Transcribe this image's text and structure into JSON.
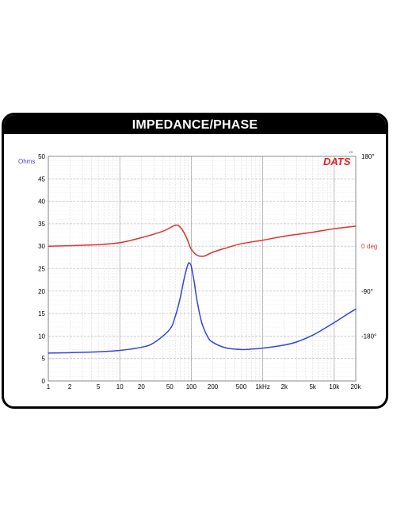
{
  "header": {
    "title": "IMPEDANCE/PHASE"
  },
  "logo": {
    "text": "DATS",
    "version": "V3"
  },
  "chart_data": {
    "type": "line",
    "title": "IMPEDANCE/PHASE",
    "x_scale": "log",
    "xlim": [
      1,
      20000
    ],
    "x_tick_values": [
      1,
      2,
      5,
      10,
      20,
      50,
      100,
      200,
      500,
      1000,
      2000,
      5000,
      10000,
      20000
    ],
    "x_tick_labels": [
      "1",
      "2",
      "5",
      "10",
      "20",
      "50",
      "100",
      "200",
      "500",
      "1kHz",
      "2k",
      "5k",
      "10k",
      "20k"
    ],
    "left_axis": {
      "unit_label": "Ohms",
      "ylim": [
        0,
        50
      ],
      "ticks": [
        "0",
        "5",
        "10",
        "15",
        "20",
        "25",
        "30",
        "35",
        "40",
        "45",
        "50"
      ]
    },
    "right_axis": {
      "unit_label": "deg",
      "ylim": [
        -270,
        180
      ],
      "ticks": [
        {
          "value": 180,
          "label": "180°"
        },
        {
          "value": 0,
          "label": "0"
        },
        {
          "value": -90,
          "label": "-90°"
        },
        {
          "value": -180,
          "label": "-180°"
        }
      ]
    },
    "series": [
      {
        "axis": "left",
        "color": "#3344dd",
        "x": [
          1,
          2,
          5,
          10,
          20,
          30,
          50,
          60,
          70,
          80,
          90,
          95,
          100,
          110,
          120,
          140,
          170,
          200,
          300,
          500,
          700,
          1000,
          2000,
          3000,
          5000,
          7000,
          10000,
          15000,
          20000
        ],
        "y": [
          6.2,
          6.3,
          6.5,
          6.8,
          7.5,
          8.5,
          11.5,
          14.5,
          18.5,
          23.0,
          26.0,
          26.2,
          25.5,
          22.0,
          18.0,
          13.0,
          9.8,
          8.6,
          7.4,
          7.0,
          7.1,
          7.3,
          8.0,
          8.7,
          10.2,
          11.5,
          13.0,
          14.8,
          16.0
        ]
      },
      {
        "axis": "right",
        "color": "#e03030",
        "x": [
          1,
          2,
          5,
          10,
          20,
          40,
          60,
          70,
          80,
          90,
          100,
          120,
          150,
          200,
          300,
          500,
          1000,
          2000,
          5000,
          10000,
          20000
        ],
        "y": [
          0,
          1,
          3,
          7,
          17,
          30,
          42,
          38,
          26,
          10,
          -6,
          -18,
          -20,
          -12,
          -4,
          5,
          12,
          20,
          28,
          35,
          40
        ]
      }
    ]
  }
}
